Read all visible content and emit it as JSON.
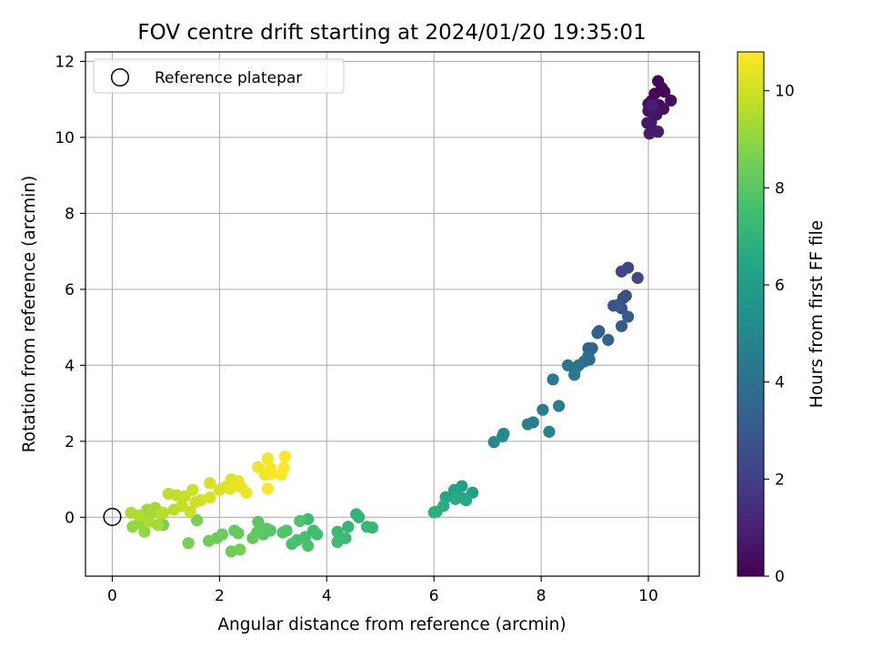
{
  "chart_data": {
    "type": "scatter",
    "title": "FOV centre drift starting at 2024/01/20 19:35:01",
    "xlabel": "Angular distance from reference (arcmin)",
    "ylabel": "Rotation from reference (arcmin)",
    "xlim": [
      -0.5,
      10.95
    ],
    "ylim": [
      -1.55,
      12.25
    ],
    "xticks": [
      0,
      2,
      4,
      6,
      8,
      10
    ],
    "yticks": [
      0,
      2,
      4,
      6,
      8,
      10,
      12
    ],
    "grid": true,
    "legend": {
      "placement": "upper-left",
      "entries": [
        "Reference platepar"
      ]
    },
    "reference_point": {
      "x": 0,
      "y": 0,
      "marker": "open-circle",
      "color": "#000000"
    },
    "colorbar": {
      "label": "Hours from first FF file",
      "range": [
        0,
        10.8
      ],
      "ticks": [
        0,
        2,
        4,
        6,
        8,
        10
      ],
      "colormap": "viridis"
    },
    "points": [
      {
        "x": 10.18,
        "y": 11.48,
        "t": 0.05
      },
      {
        "x": 10.25,
        "y": 11.3,
        "t": 0.1
      },
      {
        "x": 10.12,
        "y": 11.15,
        "t": 0.15
      },
      {
        "x": 10.3,
        "y": 11.2,
        "t": 0.2
      },
      {
        "x": 10.05,
        "y": 10.95,
        "t": 0.25
      },
      {
        "x": 10.42,
        "y": 10.97,
        "t": 0.3
      },
      {
        "x": 10.2,
        "y": 10.85,
        "t": 0.35
      },
      {
        "x": 10.0,
        "y": 10.88,
        "t": 0.4
      },
      {
        "x": 10.28,
        "y": 10.75,
        "t": 0.45
      },
      {
        "x": 10.1,
        "y": 10.68,
        "t": 0.5
      },
      {
        "x": 10.0,
        "y": 10.7,
        "t": 0.55
      },
      {
        "x": 10.15,
        "y": 10.6,
        "t": 0.6
      },
      {
        "x": 10.05,
        "y": 10.4,
        "t": 0.65
      },
      {
        "x": 9.98,
        "y": 10.38,
        "t": 0.7
      },
      {
        "x": 10.1,
        "y": 10.18,
        "t": 0.75
      },
      {
        "x": 10.18,
        "y": 10.15,
        "t": 0.8
      },
      {
        "x": 10.02,
        "y": 10.1,
        "t": 0.85
      },
      {
        "x": 10.08,
        "y": 10.85,
        "t": 0.9
      },
      {
        "x": 9.62,
        "y": 6.57,
        "t": 2.2
      },
      {
        "x": 9.5,
        "y": 6.47,
        "t": 2.3
      },
      {
        "x": 9.8,
        "y": 6.3,
        "t": 2.4
      },
      {
        "x": 9.58,
        "y": 5.83,
        "t": 2.5
      },
      {
        "x": 9.53,
        "y": 5.77,
        "t": 2.6
      },
      {
        "x": 9.35,
        "y": 5.57,
        "t": 2.7
      },
      {
        "x": 9.5,
        "y": 5.5,
        "t": 2.8
      },
      {
        "x": 9.45,
        "y": 5.6,
        "t": 2.9
      },
      {
        "x": 9.62,
        "y": 5.28,
        "t": 3.0
      },
      {
        "x": 9.5,
        "y": 5.03,
        "t": 3.1
      },
      {
        "x": 9.08,
        "y": 4.9,
        "t": 3.2
      },
      {
        "x": 9.05,
        "y": 4.85,
        "t": 3.3
      },
      {
        "x": 9.25,
        "y": 4.67,
        "t": 3.4
      },
      {
        "x": 8.88,
        "y": 4.45,
        "t": 3.5
      },
      {
        "x": 8.95,
        "y": 4.45,
        "t": 3.6
      },
      {
        "x": 8.88,
        "y": 4.25,
        "t": 3.7
      },
      {
        "x": 8.9,
        "y": 4.15,
        "t": 3.8
      },
      {
        "x": 8.8,
        "y": 4.1,
        "t": 3.9
      },
      {
        "x": 8.7,
        "y": 4.0,
        "t": 4.0
      },
      {
        "x": 8.5,
        "y": 4.0,
        "t": 4.1
      },
      {
        "x": 8.63,
        "y": 3.88,
        "t": 4.2
      },
      {
        "x": 8.62,
        "y": 3.75,
        "t": 4.3
      },
      {
        "x": 8.22,
        "y": 3.63,
        "t": 4.4
      },
      {
        "x": 8.33,
        "y": 2.93,
        "t": 4.5
      },
      {
        "x": 8.03,
        "y": 2.83,
        "t": 4.6
      },
      {
        "x": 7.85,
        "y": 2.5,
        "t": 4.7
      },
      {
        "x": 7.75,
        "y": 2.45,
        "t": 4.8
      },
      {
        "x": 8.15,
        "y": 2.25,
        "t": 4.9
      },
      {
        "x": 7.3,
        "y": 2.2,
        "t": 5.0
      },
      {
        "x": 7.28,
        "y": 2.13,
        "t": 5.1
      },
      {
        "x": 7.12,
        "y": 1.98,
        "t": 5.2
      },
      {
        "x": 6.72,
        "y": 0.65,
        "t": 6.0
      },
      {
        "x": 6.52,
        "y": 0.82,
        "t": 6.1
      },
      {
        "x": 6.38,
        "y": 0.72,
        "t": 6.2
      },
      {
        "x": 6.22,
        "y": 0.53,
        "t": 6.3
      },
      {
        "x": 6.45,
        "y": 0.55,
        "t": 6.4
      },
      {
        "x": 6.55,
        "y": 0.5,
        "t": 6.5
      },
      {
        "x": 6.6,
        "y": 0.45,
        "t": 6.55
      },
      {
        "x": 6.4,
        "y": 0.48,
        "t": 6.6
      },
      {
        "x": 6.18,
        "y": 0.3,
        "t": 6.7
      },
      {
        "x": 6.05,
        "y": 0.15,
        "t": 6.8
      },
      {
        "x": 6.0,
        "y": 0.13,
        "t": 6.85
      },
      {
        "x": 4.55,
        "y": 0.08,
        "t": 7.0
      },
      {
        "x": 4.6,
        "y": 0.0,
        "t": 7.05
      },
      {
        "x": 4.4,
        "y": -0.25,
        "t": 7.1
      },
      {
        "x": 4.75,
        "y": -0.25,
        "t": 7.15
      },
      {
        "x": 4.85,
        "y": -0.27,
        "t": 7.2
      },
      {
        "x": 4.2,
        "y": -0.38,
        "t": 7.25
      },
      {
        "x": 4.35,
        "y": -0.55,
        "t": 7.3
      },
      {
        "x": 4.2,
        "y": -0.65,
        "t": 7.35
      },
      {
        "x": 3.65,
        "y": -0.05,
        "t": 7.4
      },
      {
        "x": 3.75,
        "y": -0.35,
        "t": 7.45
      },
      {
        "x": 3.82,
        "y": -0.45,
        "t": 7.5
      },
      {
        "x": 3.6,
        "y": -0.52,
        "t": 7.55
      },
      {
        "x": 3.45,
        "y": -0.6,
        "t": 7.6
      },
      {
        "x": 3.35,
        "y": -0.7,
        "t": 7.65
      },
      {
        "x": 3.65,
        "y": -0.75,
        "t": 7.7
      },
      {
        "x": 3.5,
        "y": -0.1,
        "t": 7.75
      },
      {
        "x": 3.25,
        "y": -0.35,
        "t": 7.8
      },
      {
        "x": 3.18,
        "y": -0.4,
        "t": 7.85
      },
      {
        "x": 2.95,
        "y": -0.35,
        "t": 7.9
      },
      {
        "x": 2.88,
        "y": -0.3,
        "t": 7.95
      },
      {
        "x": 2.82,
        "y": -0.45,
        "t": 8.0
      },
      {
        "x": 2.72,
        "y": -0.12,
        "t": 8.05
      },
      {
        "x": 2.7,
        "y": -0.4,
        "t": 8.1
      },
      {
        "x": 2.62,
        "y": -0.55,
        "t": 8.15
      },
      {
        "x": 2.35,
        "y": -0.42,
        "t": 8.2
      },
      {
        "x": 2.28,
        "y": -0.35,
        "t": 8.25
      },
      {
        "x": 2.05,
        "y": -0.45,
        "t": 8.3
      },
      {
        "x": 1.95,
        "y": -0.55,
        "t": 8.35
      },
      {
        "x": 1.8,
        "y": -0.62,
        "t": 8.4
      },
      {
        "x": 2.22,
        "y": -0.9,
        "t": 8.45
      },
      {
        "x": 2.38,
        "y": -0.85,
        "t": 8.5
      },
      {
        "x": 1.42,
        "y": -0.68,
        "t": 8.55
      },
      {
        "x": 1.58,
        "y": -0.08,
        "t": 8.6
      },
      {
        "x": 0.95,
        "y": -0.2,
        "t": 8.65
      },
      {
        "x": 0.38,
        "y": -0.25,
        "t": 9.0
      },
      {
        "x": 0.6,
        "y": -0.38,
        "t": 9.05
      },
      {
        "x": 0.5,
        "y": -0.15,
        "t": 9.1
      },
      {
        "x": 0.55,
        "y": 0.0,
        "t": 9.15
      },
      {
        "x": 0.65,
        "y": 0.2,
        "t": 9.2
      },
      {
        "x": 0.72,
        "y": 0.1,
        "t": 9.25
      },
      {
        "x": 0.8,
        "y": 0.25,
        "t": 9.3
      },
      {
        "x": 0.85,
        "y": -0.2,
        "t": 9.35
      },
      {
        "x": 0.68,
        "y": -0.12,
        "t": 9.4
      },
      {
        "x": 0.35,
        "y": 0.12,
        "t": 9.45
      },
      {
        "x": 0.5,
        "y": 0.05,
        "t": 9.5
      },
      {
        "x": 0.9,
        "y": 0.1,
        "t": 9.55
      },
      {
        "x": 0.95,
        "y": 0.12,
        "t": 9.6
      },
      {
        "x": 1.15,
        "y": 0.2,
        "t": 9.65
      },
      {
        "x": 1.05,
        "y": 0.62,
        "t": 9.7
      },
      {
        "x": 1.2,
        "y": 0.58,
        "t": 9.75
      },
      {
        "x": 1.35,
        "y": 0.55,
        "t": 9.8
      },
      {
        "x": 1.3,
        "y": 0.3,
        "t": 9.85
      },
      {
        "x": 1.45,
        "y": 0.15,
        "t": 9.9
      },
      {
        "x": 1.5,
        "y": 0.72,
        "t": 9.95
      },
      {
        "x": 1.55,
        "y": 0.4,
        "t": 10.0
      },
      {
        "x": 1.65,
        "y": 0.45,
        "t": 10.05
      },
      {
        "x": 1.82,
        "y": 0.52,
        "t": 10.1
      },
      {
        "x": 1.82,
        "y": 0.9,
        "t": 10.15
      },
      {
        "x": 2.0,
        "y": 0.72,
        "t": 10.2
      },
      {
        "x": 2.12,
        "y": 0.8,
        "t": 10.25
      },
      {
        "x": 2.22,
        "y": 1.0,
        "t": 10.3
      },
      {
        "x": 2.2,
        "y": 0.75,
        "t": 10.35
      },
      {
        "x": 2.35,
        "y": 0.95,
        "t": 10.4
      },
      {
        "x": 2.4,
        "y": 0.8,
        "t": 10.45
      },
      {
        "x": 2.5,
        "y": 0.65,
        "t": 10.5
      },
      {
        "x": 2.72,
        "y": 1.32,
        "t": 10.55
      },
      {
        "x": 2.85,
        "y": 1.12,
        "t": 10.6
      },
      {
        "x": 2.9,
        "y": 1.55,
        "t": 10.65
      },
      {
        "x": 2.95,
        "y": 1.3,
        "t": 10.7
      },
      {
        "x": 2.98,
        "y": 1.15,
        "t": 10.72
      },
      {
        "x": 2.9,
        "y": 0.75,
        "t": 10.74
      },
      {
        "x": 3.15,
        "y": 1.12,
        "t": 10.76
      },
      {
        "x": 3.2,
        "y": 1.3,
        "t": 10.78
      },
      {
        "x": 3.22,
        "y": 1.6,
        "t": 10.8
      }
    ]
  }
}
